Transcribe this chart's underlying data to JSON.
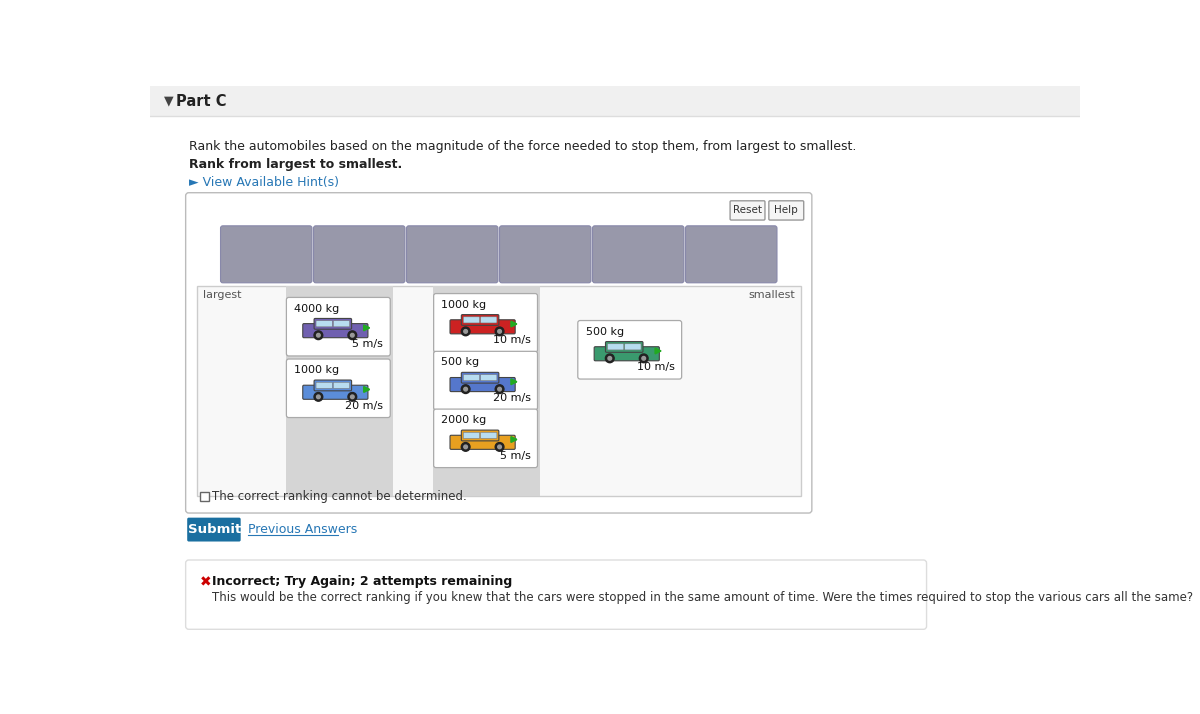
{
  "bg_color": "#ffffff",
  "header_bg": "#f0f0f0",
  "title_text": "Part C",
  "question_text": "Rank the automobiles based on the magnitude of the force needed to stop them, from largest to smallest.",
  "bold_text": "Rank from largest to smallest.",
  "hint_text": "► View Available Hint(s)",
  "hint_color": "#2777b5",
  "reset_label": "Reset",
  "help_label": "Help",
  "largest_label": "largest",
  "smallest_label": "smallest",
  "slot_color": "#9898aa",
  "slot_count": 6,
  "col1_cars": [
    {
      "mass": "4000 kg",
      "speed": "5 m/s",
      "car_color": "#7060b0"
    },
    {
      "mass": "1000 kg",
      "speed": "20 m/s",
      "car_color": "#5b8dd9"
    }
  ],
  "col2_cars": [
    {
      "mass": "1000 kg",
      "speed": "10 m/s",
      "car_color": "#cc2222"
    },
    {
      "mass": "500 kg",
      "speed": "20 m/s",
      "car_color": "#5577cc"
    },
    {
      "mass": "2000 kg",
      "speed": "5 m/s",
      "car_color": "#e8a020"
    }
  ],
  "col3_cars": [
    {
      "mass": "500 kg",
      "speed": "10 m/s",
      "car_color": "#3a9a6e"
    }
  ],
  "checkbox_text": "The correct ranking cannot be determined.",
  "submit_text": "Submit",
  "submit_bg": "#1a6fa0",
  "prev_answers_text": "Previous Answers",
  "prev_answers_color": "#2777b5",
  "error_icon": "✖",
  "error_title": "Incorrect; Try Again; 2 attempts remaining",
  "error_body": "This would be the correct ranking if you knew that the cars were stopped in the same amount of time. Were the times required to stop the various cars all the same?",
  "error_red": "#cc0000"
}
